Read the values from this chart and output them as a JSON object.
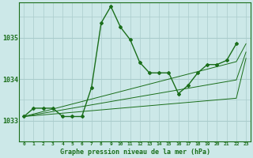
{
  "title": "Graphe pression niveau de la mer (hPa)",
  "background_color": "#cce8e8",
  "grid_color": "#aacccc",
  "line_color": "#1a6e1a",
  "marker_color": "#1a6e1a",
  "x_labels": [
    "0",
    "1",
    "2",
    "3",
    "4",
    "5",
    "6",
    "7",
    "8",
    "9",
    "10",
    "11",
    "12",
    "13",
    "14",
    "15",
    "16",
    "17",
    "18",
    "19",
    "20",
    "21",
    "22",
    "23"
  ],
  "yticks": [
    1033,
    1034,
    1035
  ],
  "ylim": [
    1032.5,
    1035.85
  ],
  "xlim": [
    -0.5,
    23.5
  ],
  "hours": [
    0,
    1,
    2,
    3,
    4,
    5,
    6,
    7,
    8,
    9,
    10,
    11,
    12,
    13,
    14,
    15,
    16,
    17,
    18,
    19,
    20,
    21,
    22,
    23
  ],
  "series_main": [
    1033.1,
    1033.3,
    1033.3,
    1033.3,
    1033.1,
    1033.1,
    1033.1,
    1033.8,
    1035.35,
    1035.75,
    1035.25,
    1034.95,
    1034.4,
    1034.15,
    1034.15,
    1034.15,
    1033.65,
    1033.85,
    1034.15,
    1034.35,
    1034.35,
    1034.45,
    1034.85,
    null
  ],
  "series_linear1": [
    1033.1,
    1033.16,
    1033.22,
    1033.28,
    1033.34,
    1033.4,
    1033.46,
    1033.52,
    1033.58,
    1033.64,
    1033.7,
    1033.76,
    1033.82,
    1033.88,
    1033.94,
    1034.0,
    1034.06,
    1034.12,
    1034.18,
    1034.24,
    1034.3,
    1034.36,
    1034.42,
    1034.85
  ],
  "series_linear2": [
    1033.1,
    1033.14,
    1033.18,
    1033.22,
    1033.26,
    1033.3,
    1033.34,
    1033.38,
    1033.42,
    1033.46,
    1033.5,
    1033.54,
    1033.58,
    1033.62,
    1033.66,
    1033.7,
    1033.74,
    1033.78,
    1033.82,
    1033.86,
    1033.9,
    1033.94,
    1033.98,
    1034.65
  ],
  "series_linear3": [
    1033.1,
    1033.12,
    1033.14,
    1033.16,
    1033.18,
    1033.2,
    1033.22,
    1033.24,
    1033.26,
    1033.28,
    1033.3,
    1033.32,
    1033.34,
    1033.36,
    1033.38,
    1033.4,
    1033.42,
    1033.44,
    1033.46,
    1033.48,
    1033.5,
    1033.52,
    1033.54,
    1034.5
  ]
}
